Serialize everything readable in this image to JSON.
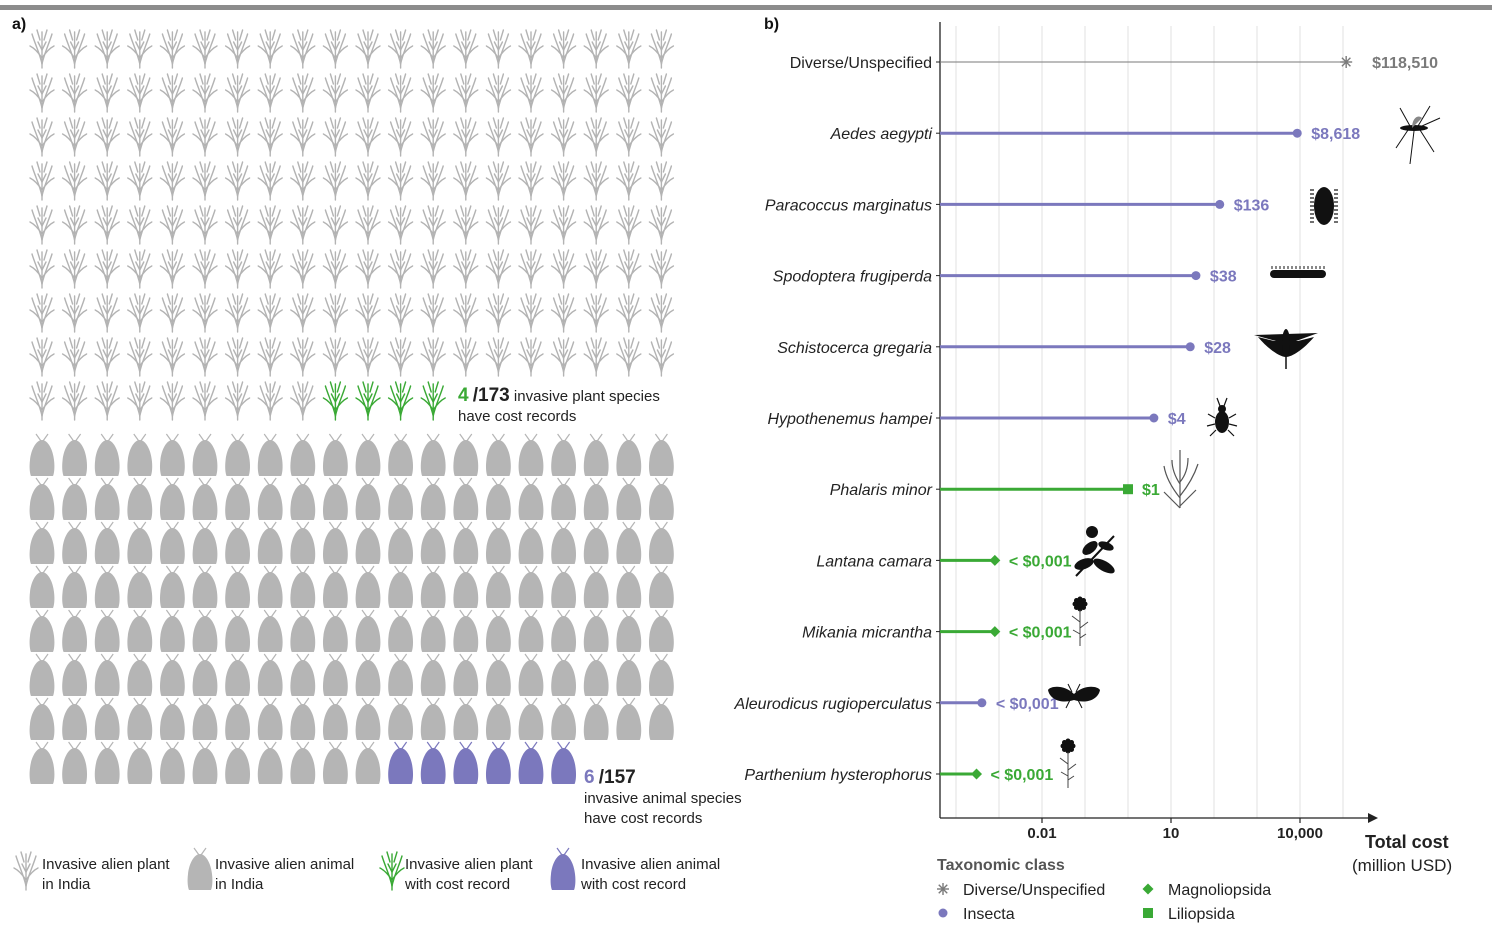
{
  "colors": {
    "plant_gray": "#b3b3b3",
    "animal_gray": "#b5b5b5",
    "plant_green": "#3aa935",
    "animal_purple": "#7b78bd",
    "diverse_gray": "#7a7a7a",
    "grid": "#e2e2e2"
  },
  "panel_a": {
    "label": "a)",
    "plants": {
      "with_cost": 4,
      "total": 173,
      "stat_num": "4",
      "stat_total": "/173",
      "stat_text_1": "invasive plant species",
      "stat_text_2": "have cost records"
    },
    "animals": {
      "with_cost": 6,
      "total": 157,
      "stat_num": "6",
      "stat_total": "/157",
      "stat_text_1": "invasive animal species",
      "stat_text_2": "have cost records"
    },
    "legend": [
      {
        "icon": "plant-icon",
        "kind": "plant",
        "colored": false,
        "line1": "Invasive alien plant",
        "line2": "in India"
      },
      {
        "icon": "moth-icon",
        "kind": "animal",
        "colored": false,
        "line1": "Invasive alien animal",
        "line2": "in India"
      },
      {
        "icon": "plant-icon",
        "kind": "plant",
        "colored": true,
        "line1": "Invasive alien plant",
        "line2": "with cost record"
      },
      {
        "icon": "moth-icon",
        "kind": "animal",
        "colored": true,
        "line1": "Invasive alien animal",
        "line2": "with cost record"
      }
    ]
  },
  "chart_data": {
    "type": "lollipop",
    "label": "b)",
    "x_scale": "log",
    "xlim": [
      0.0001,
      200000
    ],
    "x_ticks": [
      0.01,
      10,
      10000
    ],
    "x_tick_labels": [
      "0.01",
      "10",
      "10,000"
    ],
    "xlabel_1": "Total cost",
    "xlabel_2": "(million USD)",
    "grid": true,
    "legend_title": "Taxonomic class",
    "legend_position": "bottom",
    "classes": [
      {
        "name": "Diverse/Unspecified",
        "marker": "asterisk",
        "color": "#7a7a7a"
      },
      {
        "name": "Magnoliopsida",
        "marker": "diamond",
        "color": "#3aa935"
      },
      {
        "name": "Insecta",
        "marker": "circle",
        "color": "#7b78bd"
      },
      {
        "name": "Liliopsida",
        "marker": "square",
        "color": "#3aa935"
      }
    ],
    "rows": [
      {
        "species": "Diverse/Unspecified",
        "italic": false,
        "class": "Diverse/Unspecified",
        "value": 118510,
        "label": "$118,510",
        "icon": "none"
      },
      {
        "species": "Aedes aegypti",
        "italic": true,
        "class": "Insecta",
        "value": 8618,
        "label": "$8,618",
        "icon": "mosquito-icon"
      },
      {
        "species": "Paracoccus marginatus",
        "italic": true,
        "class": "Insecta",
        "value": 136,
        "label": "$136",
        "icon": "mealybug-icon"
      },
      {
        "species": "Spodoptera frugiperda",
        "italic": true,
        "class": "Insecta",
        "value": 38,
        "label": "$38",
        "icon": "caterpillar-icon"
      },
      {
        "species": "Schistocerca gregaria",
        "italic": true,
        "class": "Insecta",
        "value": 28,
        "label": "$28",
        "icon": "locust-icon"
      },
      {
        "species": "Hypothenemus hampei",
        "italic": true,
        "class": "Insecta",
        "value": 4,
        "label": "$4",
        "icon": "beetle-icon"
      },
      {
        "species": "Phalaris minor",
        "italic": true,
        "class": "Liliopsida",
        "value": 1,
        "label": "$1",
        "icon": "grass-icon"
      },
      {
        "species": "Lantana camara",
        "italic": true,
        "class": "Magnoliopsida",
        "value": 0.0008,
        "label": "< $0,001",
        "icon": "shrub-icon"
      },
      {
        "species": "Mikania micrantha",
        "italic": true,
        "class": "Magnoliopsida",
        "value": 0.0008,
        "label": "< $0,001",
        "icon": "flower-icon"
      },
      {
        "species": "Aleurodicus rugioperculatus",
        "italic": true,
        "class": "Insecta",
        "value": 0.0004,
        "label": "< $0,001",
        "icon": "whitefly-icon"
      },
      {
        "species": "Parthenium hysterophorus",
        "italic": true,
        "class": "Magnoliopsida",
        "value": 0.0003,
        "label": "< $0,001",
        "icon": "flower-icon"
      }
    ]
  }
}
